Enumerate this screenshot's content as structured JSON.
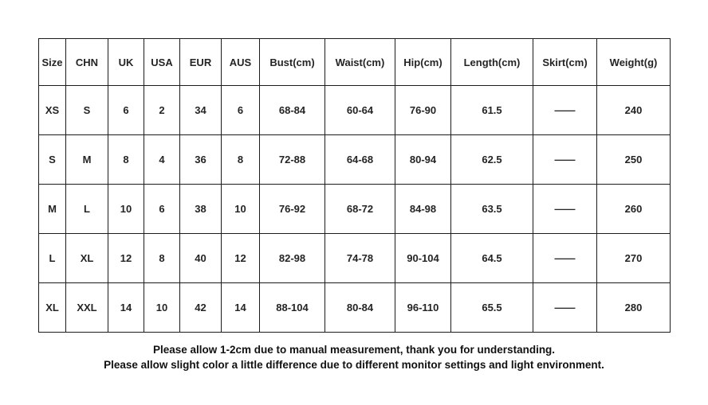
{
  "table": {
    "headers": [
      "Size",
      "CHN",
      "UK",
      "USA",
      "EUR",
      "AUS",
      "Bust(cm)",
      "Waist(cm)",
      "Hip(cm)",
      "Length(cm)",
      "Skirt(cm)",
      "Weight(g)"
    ],
    "rows": [
      [
        "XS",
        "S",
        "6",
        "2",
        "34",
        "6",
        "68-84",
        "60-64",
        "76-90",
        "61.5",
        "——",
        "240"
      ],
      [
        "S",
        "M",
        "8",
        "4",
        "36",
        "8",
        "72-88",
        "64-68",
        "80-94",
        "62.5",
        "——",
        "250"
      ],
      [
        "M",
        "L",
        "10",
        "6",
        "38",
        "10",
        "76-92",
        "68-72",
        "84-98",
        "63.5",
        "——",
        "260"
      ],
      [
        "L",
        "XL",
        "12",
        "8",
        "40",
        "12",
        "82-98",
        "74-78",
        "90-104",
        "64.5",
        "——",
        "270"
      ],
      [
        "XL",
        "XXL",
        "14",
        "10",
        "42",
        "14",
        "88-104",
        "80-84",
        "96-110",
        "65.5",
        "——",
        "280"
      ]
    ]
  },
  "notes": {
    "line1": "Please allow 1-2cm due to manual measurement, thank you for understanding.",
    "line2": "Please allow slight color a little difference due to different monitor settings and light environment."
  },
  "colors": {
    "background": "#ffffff",
    "border": "#1c1c1c",
    "table_text": "#242424",
    "note_text": "#111111"
  }
}
